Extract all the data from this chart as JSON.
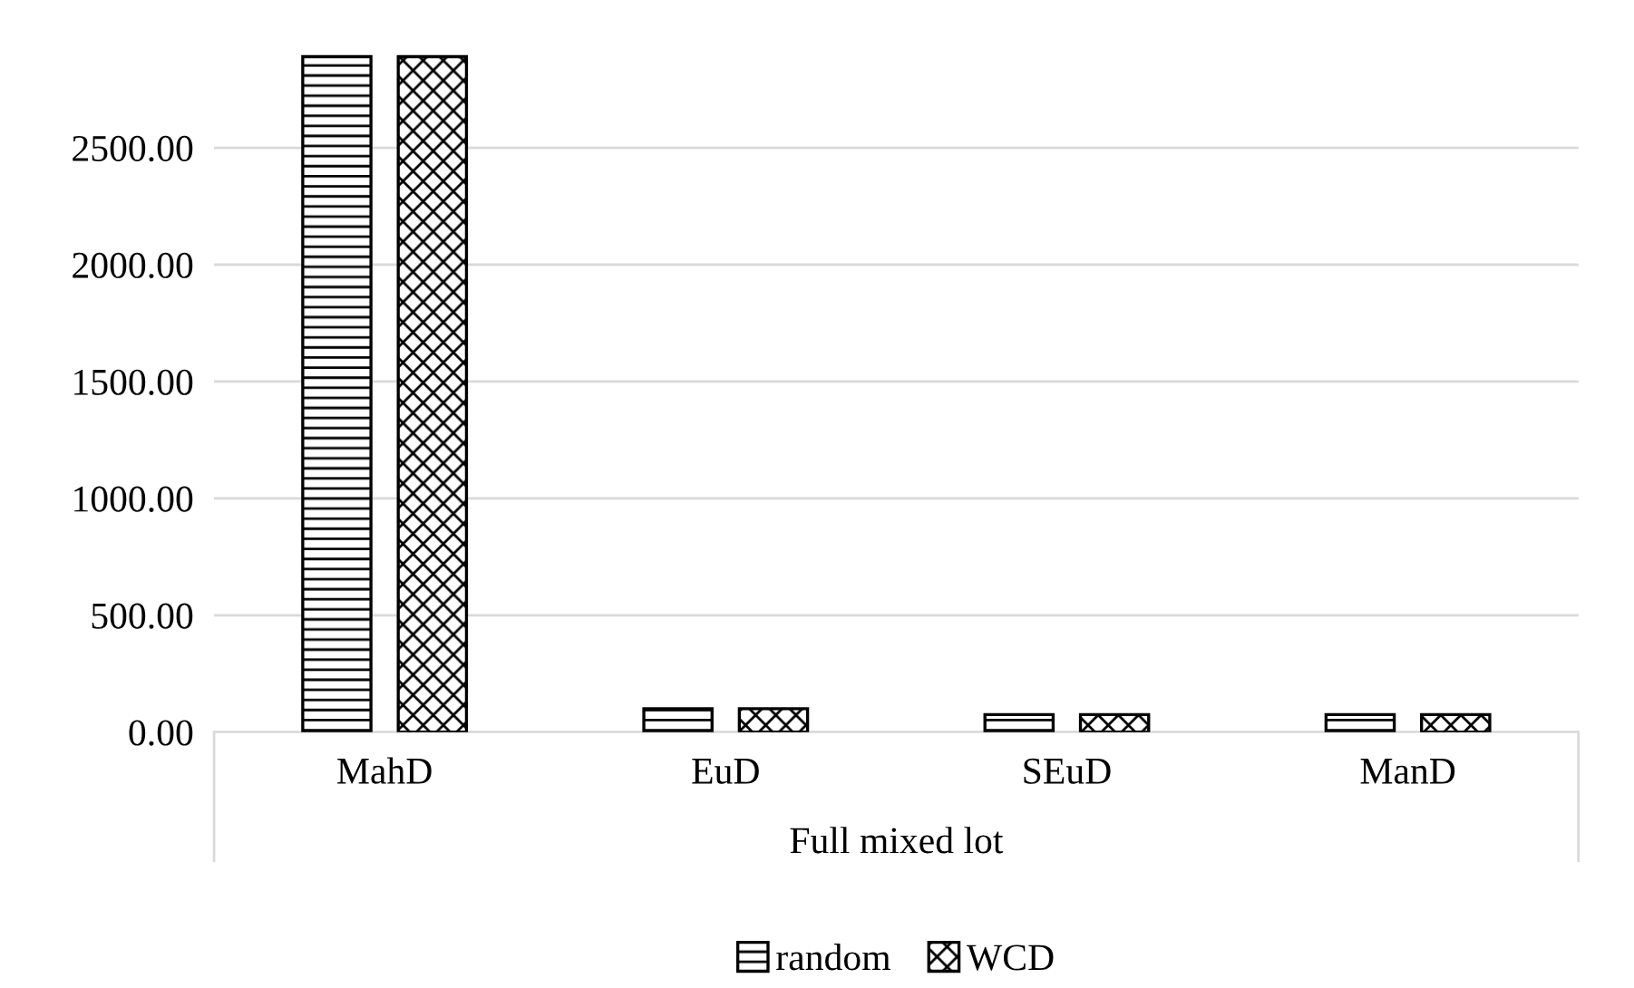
{
  "chart_data": {
    "type": "bar",
    "categories": [
      "MahD",
      "EuD",
      "SEuD",
      "ManD"
    ],
    "xlabel": "Full mixed lot",
    "series": [
      {
        "name": "random",
        "color": "#000000",
        "values": [
          2890,
          100,
          75,
          75
        ]
      },
      {
        "name": "WCD",
        "color": "#000000",
        "values": [
          2890,
          100,
          75,
          75
        ]
      }
    ],
    "ylim": [
      0,
      2900
    ],
    "yticks": [
      {
        "value": 0,
        "label": "0.00"
      },
      {
        "value": 500,
        "label": "500.00"
      },
      {
        "value": 1000,
        "label": "1000.00"
      },
      {
        "value": 1500,
        "label": "1500.00"
      },
      {
        "value": 2000,
        "label": "2000.00"
      },
      {
        "value": 2500,
        "label": "2500.00"
      }
    ],
    "grid": "y",
    "legend": "bottom"
  }
}
